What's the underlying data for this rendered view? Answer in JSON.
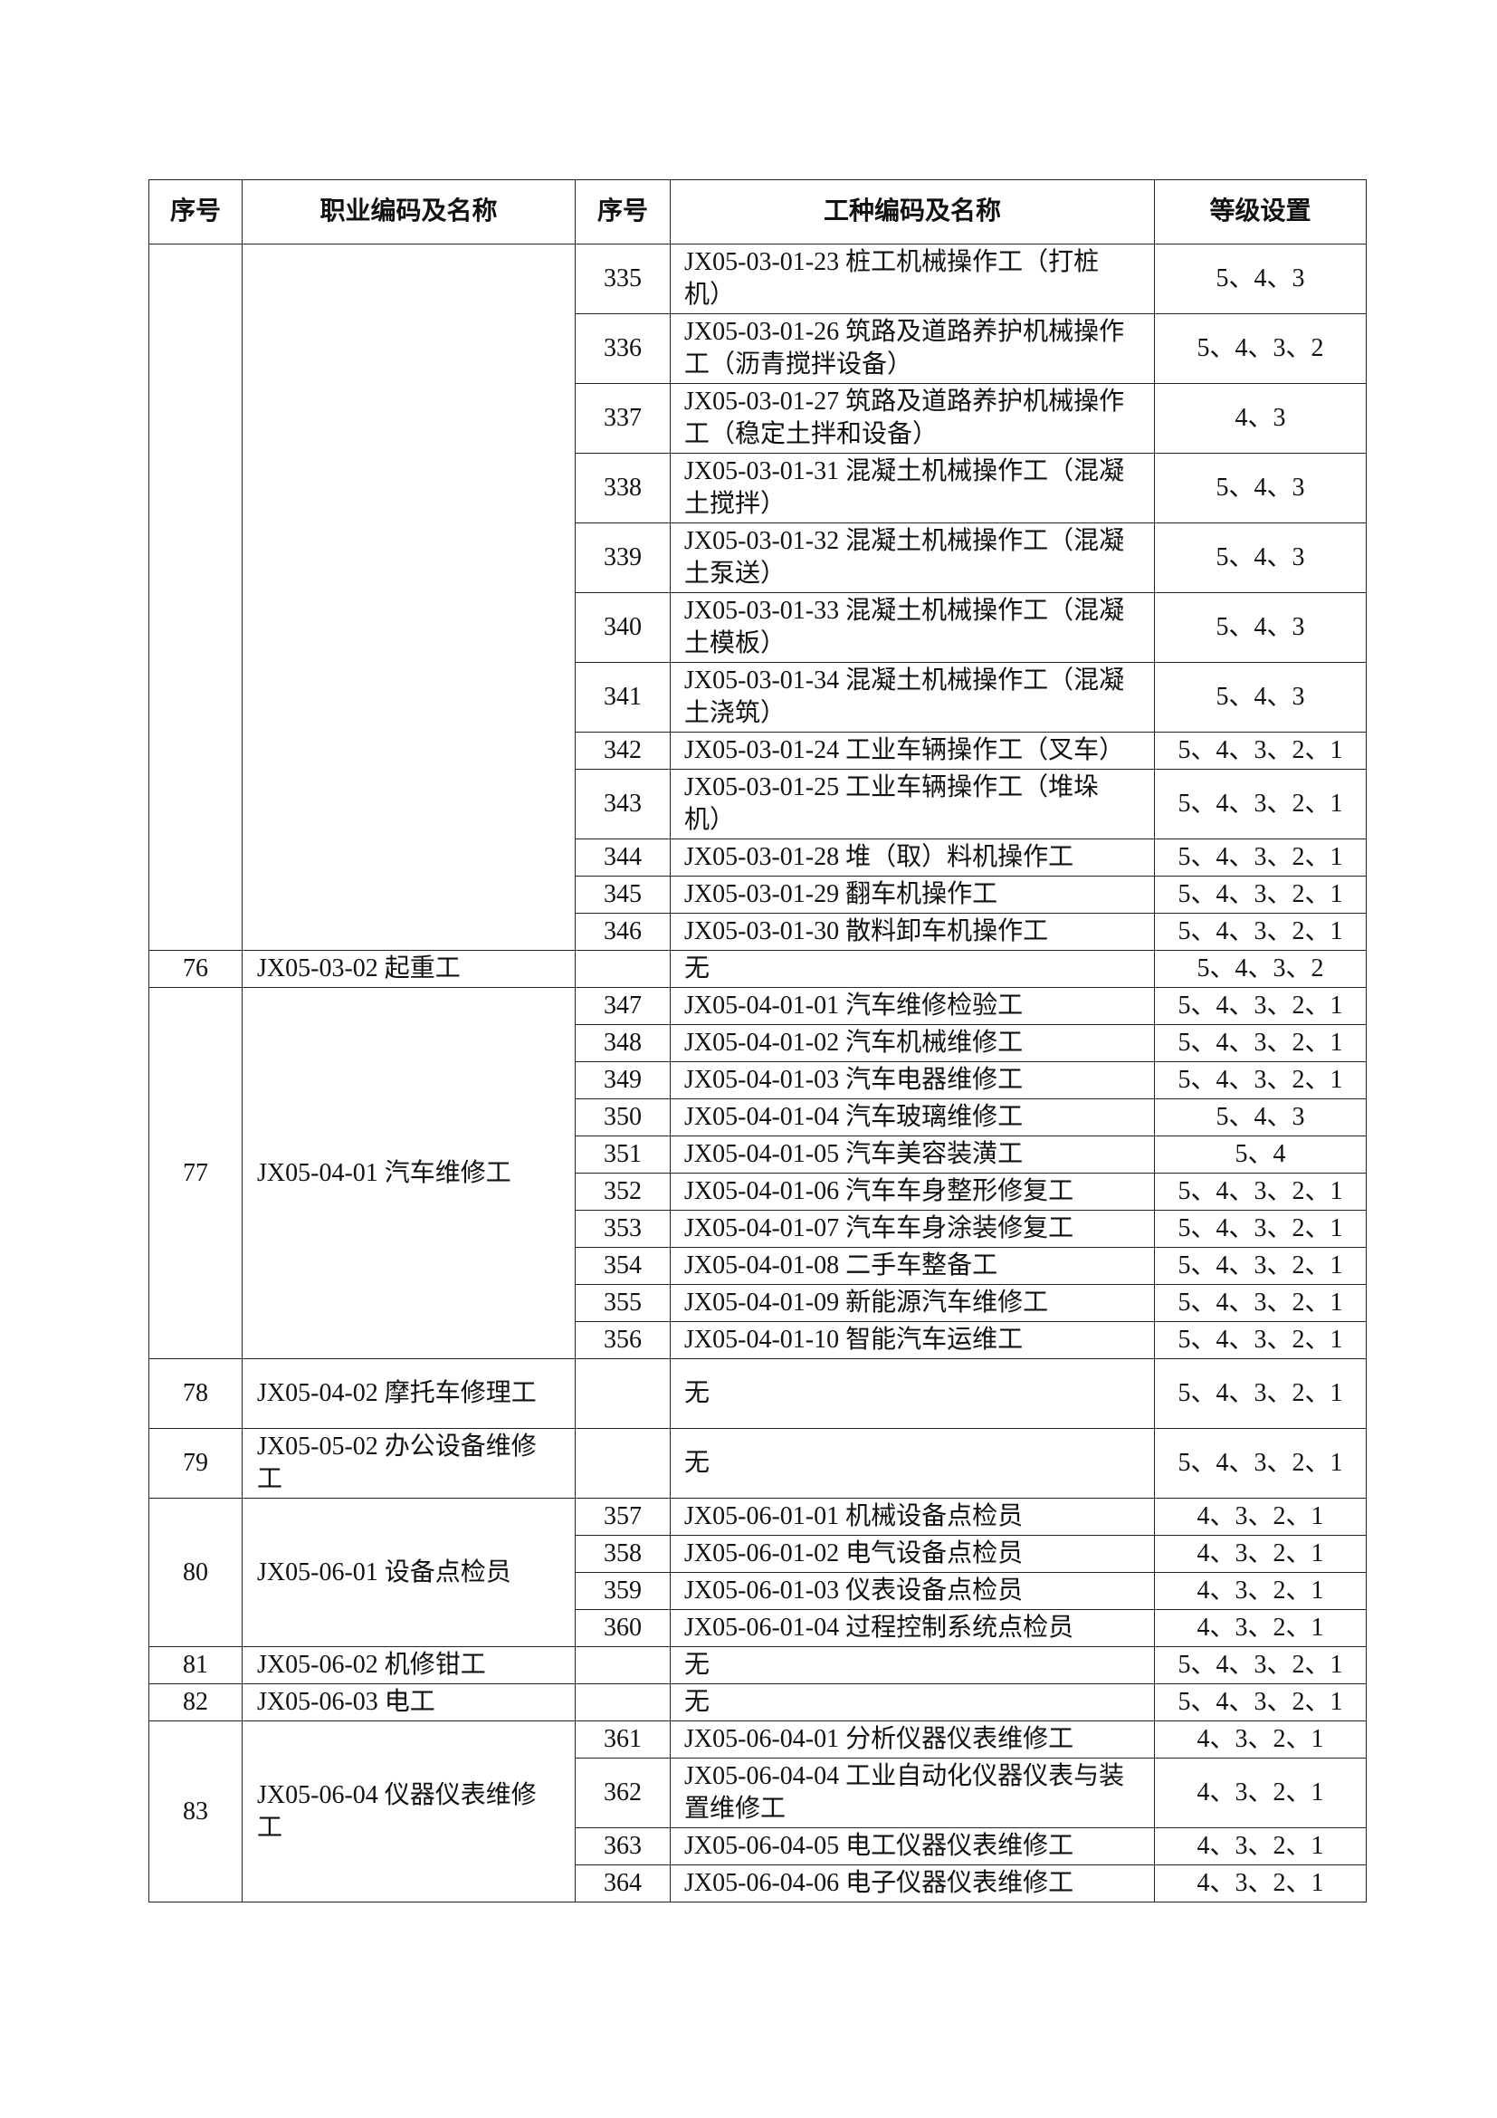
{
  "headers": {
    "seq": "序号",
    "occupation": "职业编码及名称",
    "seq2": "序号",
    "worktype": "工种编码及名称",
    "levels": "等级设置"
  },
  "groups": [
    {
      "seq": "",
      "occupation": "",
      "items": [
        {
          "seq": "335",
          "name": "JX05-03-01-23 桩工机械操作工（打桩机）",
          "levels": "5、4、3"
        },
        {
          "seq": "336",
          "name": "JX05-03-01-26 筑路及道路养护机械操作工（沥青搅拌设备）",
          "levels": "5、4、3、2"
        },
        {
          "seq": "337",
          "name": "JX05-03-01-27 筑路及道路养护机械操作工（稳定土拌和设备）",
          "levels": "4、3"
        },
        {
          "seq": "338",
          "name": "JX05-03-01-31 混凝土机械操作工（混凝土搅拌）",
          "levels": "5、4、3"
        },
        {
          "seq": "339",
          "name": "JX05-03-01-32 混凝土机械操作工（混凝土泵送）",
          "levels": "5、4、3"
        },
        {
          "seq": "340",
          "name": "JX05-03-01-33 混凝土机械操作工（混凝土模板）",
          "levels": "5、4、3"
        },
        {
          "seq": "341",
          "name": "JX05-03-01-34 混凝土机械操作工（混凝土浇筑）",
          "levels": "5、4、3"
        },
        {
          "seq": "342",
          "name": "JX05-03-01-24 工业车辆操作工（叉车）",
          "levels": "5、4、3、2、1"
        },
        {
          "seq": "343",
          "name": "JX05-03-01-25 工业车辆操作工（堆垛机）",
          "levels": "5、4、3、2、1"
        },
        {
          "seq": "344",
          "name": "JX05-03-01-28 堆（取）料机操作工",
          "levels": "5、4、3、2、1"
        },
        {
          "seq": "345",
          "name": "JX05-03-01-29 翻车机操作工",
          "levels": "5、4、3、2、1"
        },
        {
          "seq": "346",
          "name": "JX05-03-01-30 散料卸车机操作工",
          "levels": "5、4、3、2、1"
        }
      ]
    },
    {
      "seq": "76",
      "occupation": "JX05-03-02 起重工",
      "items": [
        {
          "seq": "",
          "name": "无",
          "levels": "5、4、3、2"
        }
      ]
    },
    {
      "seq": "77",
      "occupation": "JX05-04-01 汽车维修工",
      "items": [
        {
          "seq": "347",
          "name": "JX05-04-01-01 汽车维修检验工",
          "levels": "5、4、3、2、1"
        },
        {
          "seq": "348",
          "name": "JX05-04-01-02 汽车机械维修工",
          "levels": "5、4、3、2、1"
        },
        {
          "seq": "349",
          "name": "JX05-04-01-03 汽车电器维修工",
          "levels": "5、4、3、2、1"
        },
        {
          "seq": "350",
          "name": "JX05-04-01-04 汽车玻璃维修工",
          "levels": "5、4、3"
        },
        {
          "seq": "351",
          "name": "JX05-04-01-05 汽车美容装潢工",
          "levels": "5、4"
        },
        {
          "seq": "352",
          "name": "JX05-04-01-06 汽车车身整形修复工",
          "levels": "5、4、3、2、1"
        },
        {
          "seq": "353",
          "name": "JX05-04-01-07 汽车车身涂装修复工",
          "levels": "5、4、3、2、1"
        },
        {
          "seq": "354",
          "name": "JX05-04-01-08 二手车整备工",
          "levels": "5、4、3、2、1"
        },
        {
          "seq": "355",
          "name": "JX05-04-01-09 新能源汽车维修工",
          "levels": "5、4、3、2、1"
        },
        {
          "seq": "356",
          "name": "JX05-04-01-10 智能汽车运维工",
          "levels": "5、4、3、2、1"
        }
      ]
    },
    {
      "seq": "78",
      "occupation": "JX05-04-02 摩托车修理工",
      "items": [
        {
          "seq": "",
          "name": "无",
          "levels": "5、4、3、2、1",
          "tall": true
        }
      ]
    },
    {
      "seq": "79",
      "occupation": "JX05-05-02 办公设备维修工",
      "items": [
        {
          "seq": "",
          "name": "无",
          "levels": "5、4、3、2、1",
          "tall": true
        }
      ]
    },
    {
      "seq": "80",
      "occupation": "JX05-06-01 设备点检员",
      "items": [
        {
          "seq": "357",
          "name": "JX05-06-01-01 机械设备点检员",
          "levels": "4、3、2、1"
        },
        {
          "seq": "358",
          "name": "JX05-06-01-02 电气设备点检员",
          "levels": "4、3、2、1"
        },
        {
          "seq": "359",
          "name": "JX05-06-01-03 仪表设备点检员",
          "levels": "4、3、2、1"
        },
        {
          "seq": "360",
          "name": "JX05-06-01-04 过程控制系统点检员",
          "levels": "4、3、2、1"
        }
      ]
    },
    {
      "seq": "81",
      "occupation": "JX05-06-02 机修钳工",
      "items": [
        {
          "seq": "",
          "name": "无",
          "levels": "5、4、3、2、1"
        }
      ]
    },
    {
      "seq": "82",
      "occupation": "JX05-06-03 电工",
      "items": [
        {
          "seq": "",
          "name": "无",
          "levels": "5、4、3、2、1"
        }
      ]
    },
    {
      "seq": "83",
      "occupation": "JX05-06-04 仪器仪表维修工",
      "items": [
        {
          "seq": "361",
          "name": "JX05-06-04-01 分析仪器仪表维修工",
          "levels": "4、3、2、1"
        },
        {
          "seq": "362",
          "name": "JX05-06-04-04 工业自动化仪器仪表与装置维修工",
          "levels": "4、3、2、1"
        },
        {
          "seq": "363",
          "name": "JX05-06-04-05 电工仪器仪表维修工",
          "levels": "4、3、2、1"
        },
        {
          "seq": "364",
          "name": "JX05-06-04-06 电子仪器仪表维修工",
          "levels": "4、3、2、1"
        }
      ]
    }
  ]
}
